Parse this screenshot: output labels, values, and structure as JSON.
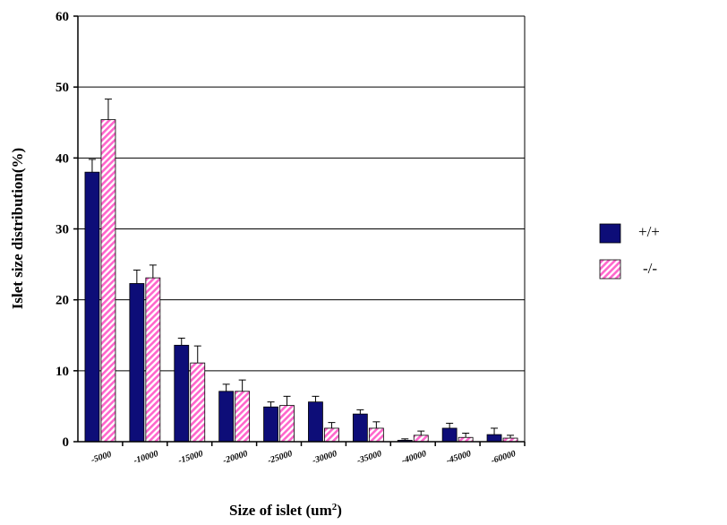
{
  "chart_data": {
    "type": "bar",
    "title": "",
    "xlabel": "Size of islet (um",
    "xlabel_sup": "2",
    "xlabel_close": ")",
    "ylabel": "Islet size distribution(%)",
    "ylim": [
      0,
      60
    ],
    "yticks": [
      0,
      10,
      20,
      30,
      40,
      50,
      60
    ],
    "grid": true,
    "legend_position": "right",
    "categories": [
      "-5000",
      "-10000",
      "-15000",
      "-20000",
      "-25000",
      "-30000",
      "-35000",
      "-40000",
      "-45000",
      "-60000"
    ],
    "series": [
      {
        "name": "+/+",
        "color": "#0d0d78",
        "pattern": "solid",
        "values": [
          38.0,
          22.3,
          13.6,
          7.1,
          4.9,
          5.6,
          3.9,
          0.2,
          1.9,
          1.0
        ],
        "errors": [
          1.8,
          1.9,
          1.0,
          1.0,
          0.7,
          0.8,
          0.6,
          0.2,
          0.7,
          0.9
        ]
      },
      {
        "name": "-/-",
        "color": "#ff66cc",
        "pattern": "hatched",
        "values": [
          45.4,
          23.1,
          11.1,
          7.1,
          5.1,
          1.9,
          1.9,
          0.9,
          0.6,
          0.5
        ],
        "errors": [
          2.9,
          1.8,
          2.4,
          1.6,
          1.3,
          0.8,
          0.9,
          0.6,
          0.6,
          0.4
        ]
      }
    ]
  }
}
